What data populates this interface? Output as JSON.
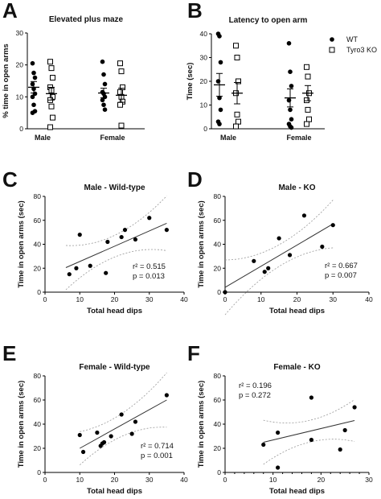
{
  "colors": {
    "wt": "#000000",
    "ko": "#000000",
    "fit": "#333333",
    "ci": "#999999"
  },
  "legend": [
    {
      "name": "WT",
      "marker": "filled-circle"
    },
    {
      "name": "Tyro3 KO",
      "marker": "open-square"
    }
  ],
  "chart_data": [
    {
      "panel": "A",
      "type": "scatter",
      "title": "Elevated plus maze",
      "ylabel": "% time in open arms",
      "xlabel": "",
      "categories": [
        "Male",
        "Female"
      ],
      "ylim": [
        0,
        30
      ],
      "yticks": [
        0,
        10,
        20,
        30
      ],
      "series": [
        {
          "name": "WT",
          "group": "Male",
          "values": [
            20.5,
            17.5,
            16,
            14,
            12.5,
            11,
            10,
            7.5,
            5.5,
            5
          ],
          "mean": 13,
          "sem": 1.8
        },
        {
          "name": "Tyro3 KO",
          "group": "Male",
          "values": [
            21,
            19,
            16,
            13,
            12,
            10,
            9,
            7,
            3.5,
            0.5
          ],
          "mean": 11,
          "sem": 2
        },
        {
          "name": "WT",
          "group": "Female",
          "values": [
            21,
            17,
            14,
            11.5,
            11,
            10,
            9,
            7.5,
            6
          ],
          "mean": 11.2,
          "sem": 1.5
        },
        {
          "name": "Tyro3 KO",
          "group": "Female",
          "values": [
            20.5,
            18,
            13,
            11.5,
            10,
            8.5,
            7.5,
            1
          ],
          "mean": 10.5,
          "sem": 2.2
        }
      ]
    },
    {
      "panel": "B",
      "type": "scatter",
      "title": "Latency to open arm",
      "ylabel": "Time (sec)",
      "xlabel": "",
      "categories": [
        "Male",
        "Female"
      ],
      "ylim": [
        0,
        40
      ],
      "yticks": [
        0,
        10,
        20,
        30,
        40
      ],
      "series": [
        {
          "name": "WT",
          "group": "Male",
          "values": [
            40,
            39,
            28,
            20,
            13,
            8,
            3,
            2
          ],
          "mean": 18.5,
          "sem": 4.8
        },
        {
          "name": "Tyro3 KO",
          "group": "Male",
          "values": [
            35,
            30,
            20,
            15,
            6,
            3,
            1
          ],
          "mean": 15,
          "sem": 4.5
        },
        {
          "name": "WT",
          "group": "Female",
          "values": [
            36,
            24,
            18,
            12,
            8,
            4,
            2,
            1,
            0.5
          ],
          "mean": 13,
          "sem": 3.8
        },
        {
          "name": "Tyro3 KO",
          "group": "Female",
          "values": [
            26,
            22,
            15,
            12,
            8,
            4,
            2
          ],
          "mean": 15,
          "sem": 3.2
        }
      ]
    },
    {
      "panel": "C",
      "type": "scatter",
      "title": "Male - Wild-type",
      "xlabel": "Total head dips",
      "ylabel": "Time in open arms (sec)",
      "xlim": [
        0,
        40
      ],
      "ylim": [
        0,
        80
      ],
      "xticks": [
        0,
        10,
        20,
        30,
        40
      ],
      "yticks": [
        0,
        20,
        40,
        60,
        80
      ],
      "x": [
        7,
        9,
        10,
        13,
        17.5,
        18,
        22,
        23,
        26,
        30,
        35
      ],
      "y": [
        15,
        20,
        48,
        22,
        16,
        42,
        46,
        52,
        44,
        62,
        52
      ],
      "fit": {
        "x": [
          6,
          35
        ],
        "y": [
          20.5,
          57.5
        ]
      },
      "stats": [
        "r² = 0.515",
        "p = 0.013"
      ]
    },
    {
      "panel": "D",
      "type": "scatter",
      "title": "Male - KO",
      "xlabel": "Total head dips",
      "ylabel": "Time in open arms (sec)",
      "xlim": [
        0,
        40
      ],
      "ylim": [
        0,
        80
      ],
      "xticks": [
        0,
        10,
        20,
        30,
        40
      ],
      "yticks": [
        0,
        20,
        40,
        60,
        80
      ],
      "x": [
        0,
        8,
        11,
        12,
        15,
        18,
        22,
        27,
        30
      ],
      "y": [
        0,
        26,
        17,
        20,
        45,
        31,
        64,
        38,
        56
      ],
      "fit": {
        "x": [
          0,
          30
        ],
        "y": [
          4,
          57
        ]
      },
      "stats": [
        "r² = 0.667",
        "p = 0.007"
      ]
    },
    {
      "panel": "E",
      "type": "scatter",
      "title": "Female - Wild-type",
      "xlabel": "Total head dips",
      "ylabel": "Time in open arms (sec)",
      "xlim": [
        0,
        40
      ],
      "ylim": [
        0,
        80
      ],
      "xticks": [
        0,
        10,
        20,
        30,
        40
      ],
      "yticks": [
        0,
        20,
        40,
        60,
        80
      ],
      "x": [
        10,
        11,
        15,
        16,
        16.5,
        17,
        19,
        22,
        25,
        26,
        35
      ],
      "y": [
        31,
        17,
        33,
        22,
        24,
        25,
        30,
        48,
        32,
        42,
        64
      ],
      "fit": {
        "x": [
          10,
          35
        ],
        "y": [
          20,
          60
        ]
      },
      "stats": [
        "r² = 0.714",
        "p = 0.001"
      ]
    },
    {
      "panel": "F",
      "type": "scatter",
      "title": "Female - KO",
      "xlabel": "Total head dips",
      "ylabel": "Time in open arms (sec)",
      "xlim": [
        0,
        30
      ],
      "ylim": [
        0,
        80
      ],
      "xticks": [
        0,
        10,
        20,
        30
      ],
      "yticks": [
        0,
        20,
        40,
        60,
        80
      ],
      "x": [
        8,
        11,
        11,
        18,
        18,
        24,
        25,
        27
      ],
      "y": [
        23,
        33,
        4,
        62,
        27,
        19,
        35,
        54
      ],
      "fit": {
        "x": [
          8,
          27
        ],
        "y": [
          25,
          43
        ]
      },
      "stats": [
        "r² = 0.196",
        "p = 0.272"
      ]
    }
  ]
}
